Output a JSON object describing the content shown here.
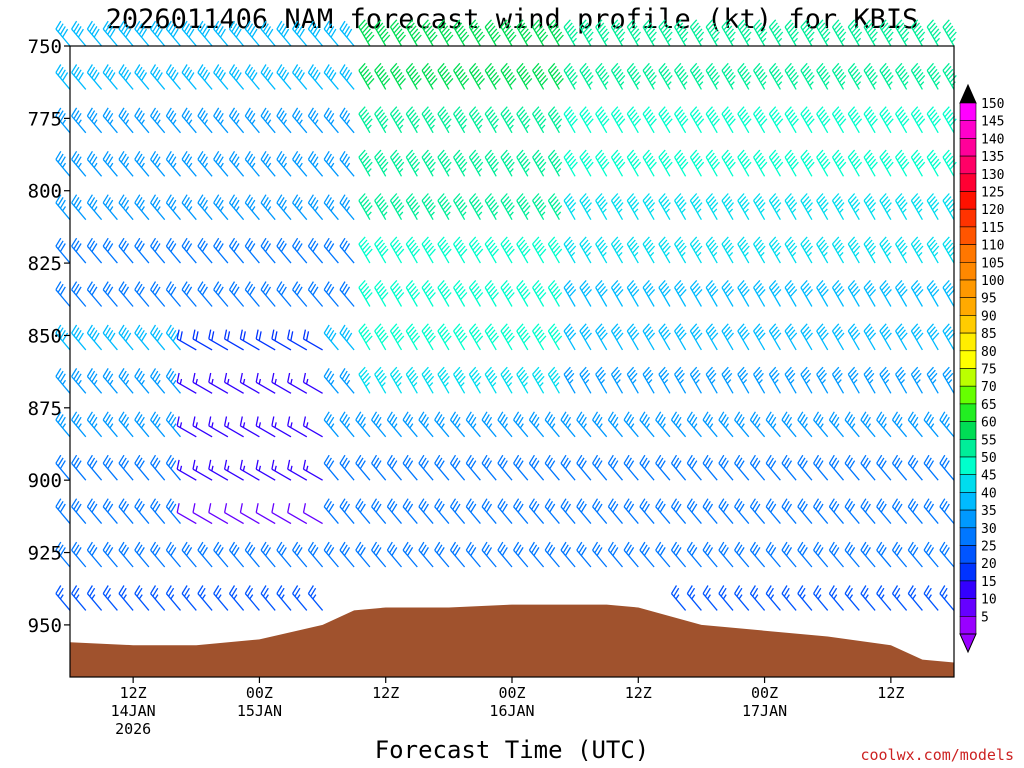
{
  "title": "2026011406 NAM forecast wind profile (kt) for KBIS",
  "xlabel": "Forecast Time (UTC)",
  "credit": "coolwx.com/models",
  "y_ticks": [
    "750",
    "775",
    "800",
    "825",
    "850",
    "875",
    "900",
    "925",
    "950"
  ],
  "x_ticks": [
    {
      "l1": "12Z",
      "l2": "14JAN",
      "l3": "2026"
    },
    {
      "l1": "00Z",
      "l2": "15JAN",
      "l3": ""
    },
    {
      "l1": "12Z",
      "l2": "",
      "l3": ""
    },
    {
      "l1": "00Z",
      "l2": "16JAN",
      "l3": ""
    },
    {
      "l1": "12Z",
      "l2": "",
      "l3": ""
    },
    {
      "l1": "00Z",
      "l2": "17JAN",
      "l3": ""
    },
    {
      "l1": "12Z",
      "l2": "",
      "l3": ""
    }
  ],
  "colorbar": {
    "labels": [
      "150",
      "145",
      "140",
      "135",
      "130",
      "125",
      "120",
      "115",
      "110",
      "105",
      "100",
      "95",
      "90",
      "85",
      "80",
      "75",
      "70",
      "65",
      "60",
      "55",
      "50",
      "45",
      "40",
      "35",
      "30",
      "25",
      "20",
      "15",
      "10",
      "5"
    ],
    "colors": [
      "#ff00ff",
      "#ff00cc",
      "#ff0099",
      "#ff0066",
      "#ff0033",
      "#ff1100",
      "#ff3300",
      "#ff5500",
      "#ff7700",
      "#ff8800",
      "#ff9900",
      "#ffaa00",
      "#ffcc00",
      "#ffee00",
      "#ffff00",
      "#bbff00",
      "#66ff00",
      "#22ee22",
      "#00dd55",
      "#00ee99",
      "#00ffcc",
      "#00ddee",
      "#00bbff",
      "#0099ff",
      "#0077ff",
      "#0055ff",
      "#0033ff",
      "#3300ff",
      "#6600ff",
      "#9900ff"
    ],
    "top_arrow": "#000000",
    "bottom_arrow": "#9900ff"
  },
  "chart_data": {
    "type": "wind_barb_profile",
    "title": "2026011406 NAM forecast wind profile (kt) for KBIS",
    "xlabel": "Forecast Time (UTC)",
    "ylabel": "",
    "units": "kt",
    "y_axis": {
      "ticks": [
        750,
        775,
        800,
        825,
        850,
        875,
        900,
        925,
        950
      ],
      "inverted": true,
      "range": [
        750,
        968
      ]
    },
    "x_axis": {
      "range_hours": [
        6,
        90
      ],
      "tick_hours": [
        12,
        24,
        36,
        48,
        60,
        72,
        84
      ],
      "tick_labels": [
        "12Z 14JAN 2026",
        "00Z 15JAN",
        "12Z",
        "00Z 16JAN",
        "12Z",
        "00Z 17JAN",
        "12Z"
      ]
    },
    "surface_pressure": {
      "hours": [
        6,
        12,
        18,
        24,
        30,
        33,
        36,
        42,
        48,
        54,
        57,
        60,
        66,
        72,
        78,
        84,
        87,
        90
      ],
      "hpa": [
        956,
        957,
        957,
        955,
        950,
        945,
        944,
        944,
        943,
        943,
        943,
        944,
        950,
        952,
        954,
        957,
        962,
        963
      ]
    },
    "levels_hpa": [
      750,
      765,
      780,
      795,
      810,
      825,
      840,
      855,
      870,
      885,
      900,
      915,
      930,
      945
    ],
    "wind_regimes": [
      {
        "hours": [
          6,
          34
        ],
        "pressure_hpa": [
          750,
          845
        ],
        "direction_deg": 320,
        "speed_kt": [
          30,
          40
        ]
      },
      {
        "hours": [
          17,
          31
        ],
        "pressure_hpa": [
          845,
          920
        ],
        "direction_deg": 300,
        "speed_kt": [
          10,
          20
        ]
      },
      {
        "hours": [
          34,
          54
        ],
        "pressure_hpa": [
          750,
          880
        ],
        "direction_deg": 330,
        "speed_kt": [
          45,
          60
        ]
      },
      {
        "hours": [
          54,
          90
        ],
        "pressure_hpa": [
          750,
          880
        ],
        "direction_deg": 330,
        "speed_kt": [
          35,
          55
        ]
      },
      {
        "hours": [
          34,
          90
        ],
        "pressure_hpa": [
          880,
          950
        ],
        "direction_deg": 320,
        "speed_kt": [
          25,
          35
        ]
      }
    ],
    "colorbar_range_kt": [
      5,
      150
    ],
    "colorbar_step_kt": 5
  }
}
